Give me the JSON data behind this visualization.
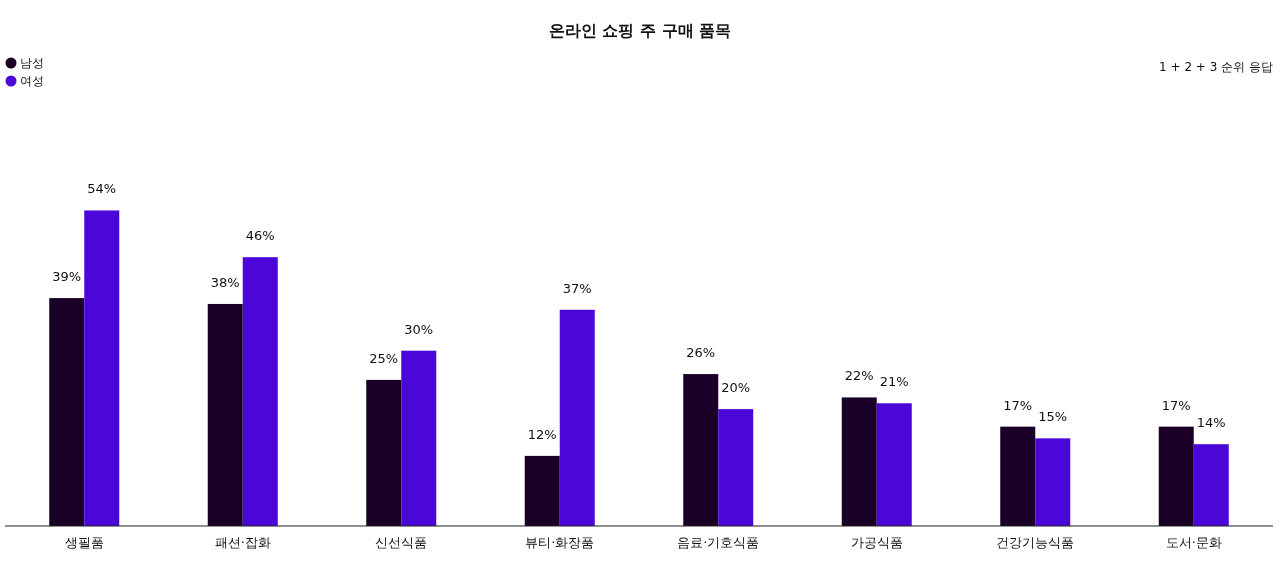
{
  "chart_data": {
    "type": "bar",
    "title": "온라인 쇼핑 주 구매 품목",
    "categories": [
      "생필품",
      "패션·잡화",
      "신선식품",
      "뷰티·화장품",
      "음료·기호식품",
      "가공식품",
      "건강기능식품",
      "도서·문화"
    ],
    "series": [
      {
        "name": "남성",
        "color": "#1a0026",
        "values": [
          39,
          38,
          25,
          12,
          26,
          22,
          17,
          17
        ],
        "value_labels": [
          "39%",
          "38%",
          "25%",
          "12%",
          "26%",
          "22%",
          "17%",
          "17%"
        ]
      },
      {
        "name": "여성",
        "color": "#4b06d8",
        "values": [
          54,
          46,
          30,
          37,
          20,
          21,
          15,
          14
        ],
        "value_labels": [
          "54%",
          "46%",
          "30%",
          "37%",
          "20%",
          "21%",
          "15%",
          "14%"
        ]
      }
    ],
    "legend": "top left",
    "grid": false,
    "annotations": [
      "1 + 2 + 3 순위 응답"
    ]
  }
}
